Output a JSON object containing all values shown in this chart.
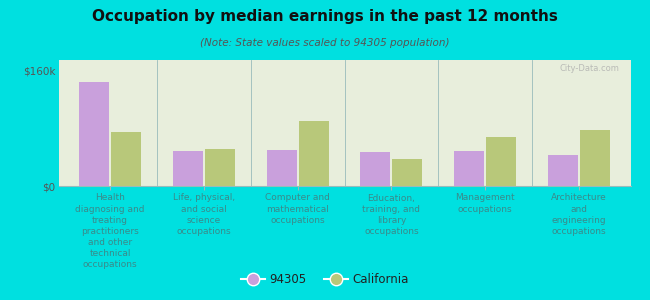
{
  "title": "Occupation by median earnings in the past 12 months",
  "subtitle": "(Note: State values scaled to 94305 population)",
  "background_color": "#00e0e0",
  "plot_bg_color": "#e8eedc",
  "categories": [
    "Health\ndiagnosing and\ntreating\npractitioners\nand other\ntechnical\noccupations",
    "Life, physical,\nand social\nscience\noccupations",
    "Computer and\nmathematical\noccupations",
    "Education,\ntraining, and\nlibrary\noccupations",
    "Management\noccupations",
    "Architecture\nand\nengineering\noccupations"
  ],
  "values_94305": [
    145000,
    48000,
    50000,
    47000,
    48000,
    43000
  ],
  "values_california": [
    75000,
    52000,
    90000,
    38000,
    68000,
    78000
  ],
  "color_94305": "#c9a0dc",
  "color_california": "#b8c87a",
  "ytick_labels": [
    "$0",
    "$160k"
  ],
  "ytick_values": [
    0,
    160000
  ],
  "legend_94305": "94305",
  "legend_california": "California",
  "ylim_max": 175000,
  "watermark": "City-Data.com",
  "label_color": "#3a8a8a",
  "separator_color": "#99bbbb",
  "spine_color": "#99bbbb"
}
